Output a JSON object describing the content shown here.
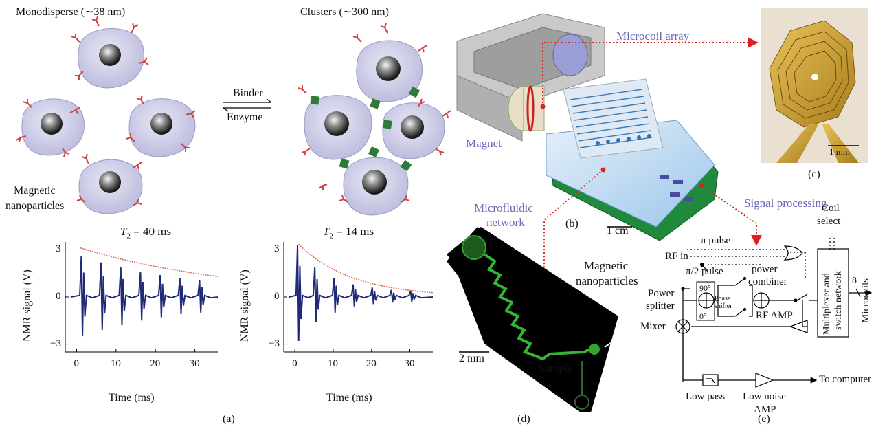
{
  "panel_a": {
    "title_left": "Monodisperse (∼38 nm)",
    "title_right": "Clusters (∼300 nm)",
    "arrow_top": "Binder",
    "arrow_bottom": "Enzyme",
    "np_label_1": "Magnetic",
    "np_label_2": "nanoparticles",
    "t2_left": "T",
    "t2_left_sub": "2",
    "t2_left_val": " = 40 ms",
    "t2_right": "T",
    "t2_right_sub": "2",
    "t2_right_val": " = 14 ms",
    "caption": "(a)"
  },
  "chart_data": [
    {
      "type": "line",
      "title": "",
      "xlabel": "Time (ms)",
      "ylabel": "NMR signal (V)",
      "xlim": [
        -2,
        36
      ],
      "ylim": [
        -3.5,
        3.5
      ],
      "xticks": [
        "0",
        "10",
        "20",
        "30"
      ],
      "yticks": [
        "3",
        "0",
        "−3"
      ],
      "series": [
        {
          "echo_times": [
            1.5,
            6.5,
            11.5,
            16.5,
            21.5,
            26.5,
            31.5
          ],
          "peak_up": [
            2.6,
            2.2,
            1.9,
            1.6,
            1.4,
            1.2,
            1.05
          ],
          "peak_down": [
            -2.5,
            -2.1,
            -1.8,
            -1.5,
            -1.3,
            -1.1,
            -1.0
          ]
        },
        {
          "envelope_T2_ms": 40,
          "envelope_A": 3.2
        }
      ]
    },
    {
      "type": "line",
      "title": "",
      "xlabel": "Time (ms)",
      "ylabel": "NMR signal (V)",
      "xlim": [
        -2,
        36
      ],
      "ylim": [
        -3.5,
        3.5
      ],
      "xticks": [
        "0",
        "10",
        "20",
        "30"
      ],
      "yticks": [
        "3",
        "0",
        "−3"
      ],
      "series": [
        {
          "echo_times": [
            1.0,
            5.5,
            10.5,
            15.5,
            20.5,
            25.5,
            30.5
          ],
          "peak_up": [
            3.3,
            1.9,
            1.2,
            0.8,
            0.6,
            0.45,
            0.4
          ],
          "peak_down": [
            -2.8,
            -1.6,
            -1.0,
            -0.6,
            -0.45,
            -0.35,
            -0.3
          ]
        },
        {
          "envelope_T2_ms": 14,
          "envelope_A": 3.6
        }
      ]
    }
  ],
  "panel_b": {
    "microcoil": "Microcoil array",
    "magnet": "Magnet",
    "microfluidic_1": "Microfluidic",
    "microfluidic_2": "network",
    "signal": "Signal processing",
    "scale": "1 cm",
    "caption": "(b)"
  },
  "panel_c": {
    "scale": "1 mm",
    "caption": "(c)"
  },
  "panel_d": {
    "scale": "2 mm",
    "np_1": "Magnetic",
    "np_2": "nanoparticles",
    "sample": "Sample",
    "caption": "(d)"
  },
  "panel_e": {
    "pi_pulse": "π  pulse",
    "rf_in": "RF in",
    "pi2_pulse": "π/2 pulse",
    "power_combiner_1": "power",
    "power_combiner_2": "combiner",
    "power_splitter_1": "Power",
    "power_splitter_2": "splitter",
    "deg90": "90°",
    "deg0": "0°",
    "phase_1": "Phase",
    "phase_2": "shifter",
    "mixer": "Mixer",
    "rf_amp": "RF AMP",
    "coil_1": "Coil",
    "coil_2": "select",
    "mux_1": "Multiplexer and",
    "mux_2": "switch network",
    "eight": "8",
    "microcoils": "Microcoils",
    "to_computer": "To computer",
    "low_pass": "Low pass",
    "lna_1": "Low noise",
    "lna_2": "AMP",
    "caption": "(e)"
  }
}
